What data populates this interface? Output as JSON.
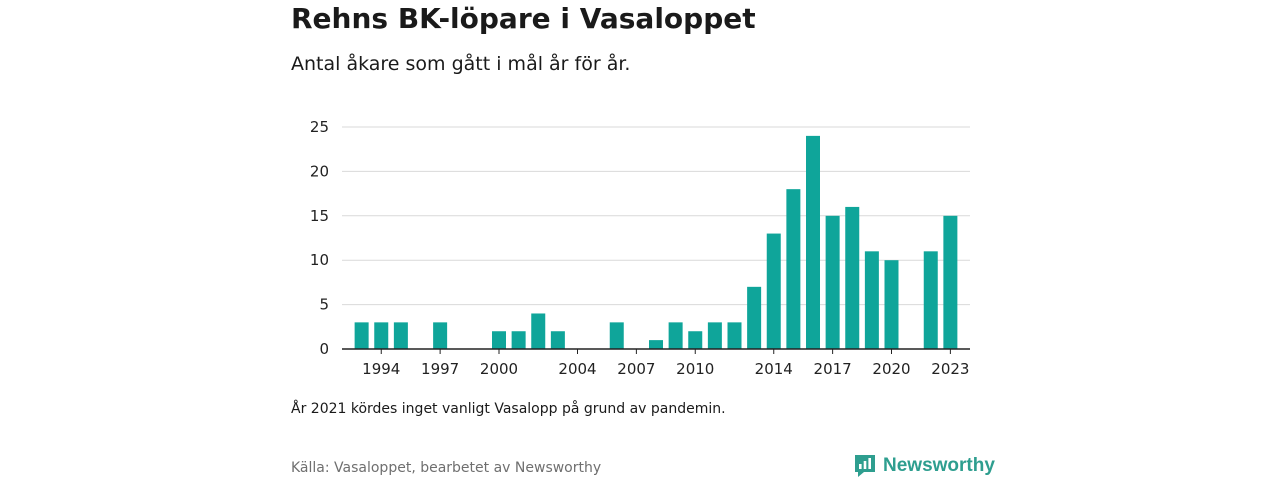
{
  "title": "Rehns BK-löpare i Vasaloppet",
  "subtitle": "Antal åkare som gått i mål år för år.",
  "note": "År 2021 kördes inget vanligt Vasalopp på grund av pandemin.",
  "source": "Källa: Vasaloppet, bearbetet av Newsworthy",
  "brand": {
    "name": "Newsworthy",
    "icon": "newsworthy-logo-icon",
    "color": "#2e9e8f"
  },
  "colors": {
    "bar": "#0fa59a",
    "grid": "#d9d9d9",
    "axis": "#222222"
  },
  "chart_data": {
    "type": "bar",
    "title": "Rehns BK-löpare i Vasaloppet",
    "subtitle": "Antal åkare som gått i mål år för år.",
    "xlabel": "",
    "ylabel": "",
    "x": [
      1993,
      1994,
      1995,
      1996,
      1997,
      1998,
      1999,
      2000,
      2001,
      2002,
      2003,
      2004,
      2005,
      2006,
      2007,
      2008,
      2009,
      2010,
      2011,
      2012,
      2013,
      2014,
      2015,
      2016,
      2017,
      2018,
      2019,
      2020,
      2021,
      2022,
      2023
    ],
    "values": [
      3,
      3,
      3,
      0,
      3,
      0,
      0,
      2,
      2,
      4,
      2,
      0,
      0,
      3,
      0,
      1,
      3,
      2,
      3,
      3,
      7,
      13,
      18,
      24,
      15,
      16,
      11,
      10,
      0,
      11,
      15
    ],
    "x_ticks": [
      "1994",
      "1997",
      "2000",
      "2004",
      "2007",
      "2010",
      "2014",
      "2017",
      "2020",
      "2023"
    ],
    "y_ticks": [
      "0",
      "5",
      "10",
      "15",
      "20",
      "25"
    ],
    "ylim": [
      0,
      25
    ],
    "grid": true,
    "legend": "none"
  }
}
